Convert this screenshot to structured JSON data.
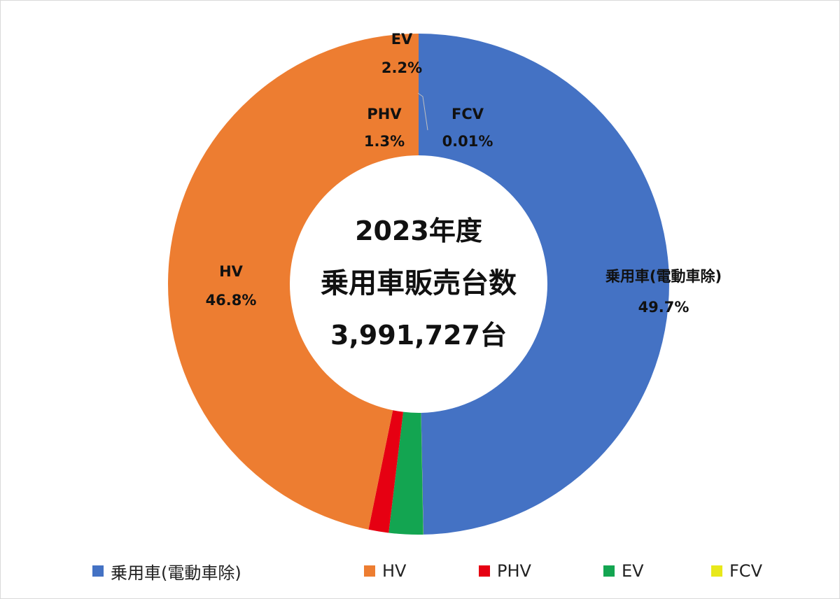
{
  "chart_data": {
    "type": "pie",
    "title_lines": [
      "2023年度",
      "乗用車販売台数",
      "3,991,727台"
    ],
    "slices": [
      {
        "name": "乗用車(電動車除)",
        "value": 49.7,
        "label": "乗用車(電動車除)",
        "value_label": "49.7%",
        "color": "#4472C4"
      },
      {
        "name": "FCV",
        "value": 0.01,
        "label": "FCV",
        "value_label": "0.01%",
        "color": "#E8E81A"
      },
      {
        "name": "EV",
        "value": 2.2,
        "label": "EV",
        "value_label": "2.2%",
        "color": "#13A551"
      },
      {
        "name": "PHV",
        "value": 1.3,
        "label": "PHV",
        "value_label": "1.3%",
        "color": "#E60012"
      },
      {
        "name": "HV",
        "value": 46.8,
        "label": "HV",
        "value_label": "46.8%",
        "color": "#ED7D31"
      }
    ],
    "legend": {
      "position": "bottom",
      "entries": [
        {
          "label": "乗用車(電動車除)",
          "color": "#4472C4"
        },
        {
          "label": "HV",
          "color": "#ED7D31"
        },
        {
          "label": "PHV",
          "color": "#E60012"
        },
        {
          "label": "EV",
          "color": "#13A551"
        },
        {
          "label": "FCV",
          "color": "#E8E81A"
        }
      ]
    }
  }
}
